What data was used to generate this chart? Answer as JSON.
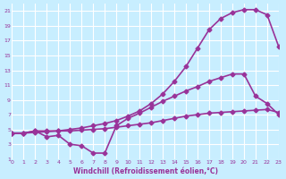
{
  "line1_x": [
    0,
    1,
    2,
    3,
    4,
    5,
    6,
    7,
    8,
    9,
    10,
    11,
    12,
    13,
    14,
    15,
    16,
    17,
    18,
    19,
    20,
    21,
    22,
    23
  ],
  "line1_y": [
    4.5,
    4.5,
    4.8,
    4.8,
    4.8,
    5.0,
    5.2,
    5.5,
    5.8,
    6.2,
    6.8,
    7.5,
    8.5,
    9.8,
    11.5,
    13.5,
    16.0,
    18.5,
    20.0,
    20.8,
    21.2,
    21.2,
    20.5,
    16.2
  ],
  "line2_x": [
    0,
    1,
    2,
    3,
    4,
    5,
    6,
    7,
    8,
    9,
    10,
    11,
    12,
    13,
    14,
    15,
    16,
    17,
    18,
    19,
    20,
    21,
    22,
    23
  ],
  "line2_y": [
    4.5,
    4.5,
    4.6,
    4.7,
    4.8,
    4.8,
    4.9,
    5.0,
    5.1,
    5.3,
    5.5,
    5.7,
    5.9,
    6.2,
    6.5,
    6.8,
    7.0,
    7.2,
    7.3,
    7.4,
    7.5,
    7.6,
    7.7,
    7.3
  ],
  "line3_x": [
    0,
    1,
    2,
    3,
    4,
    5,
    6,
    7,
    8,
    9,
    10,
    11,
    12,
    13,
    14,
    15,
    16,
    17,
    18,
    19,
    20,
    21,
    22,
    23
  ],
  "line3_y": [
    4.5,
    4.5,
    4.8,
    4.0,
    4.2,
    3.0,
    2.8,
    1.8,
    1.8,
    5.5,
    6.5,
    7.2,
    8.0,
    8.8,
    9.5,
    10.2,
    10.8,
    11.5,
    12.0,
    12.5,
    12.5,
    9.5,
    8.5,
    7.0
  ],
  "color": "#993399",
  "bg_color": "#c8eeff",
  "grid_color": "#ffffff",
  "xlabel": "Windchill (Refroidissement éolien,°C)",
  "ylabel": "",
  "xlim": [
    0,
    23
  ],
  "ylim": [
    1,
    22
  ],
  "xticks": [
    0,
    1,
    2,
    3,
    4,
    5,
    6,
    7,
    8,
    9,
    10,
    11,
    12,
    13,
    14,
    15,
    16,
    17,
    18,
    19,
    20,
    21,
    22,
    23
  ],
  "yticks": [
    1,
    3,
    5,
    7,
    9,
    11,
    13,
    15,
    17,
    19,
    21
  ],
  "marker": "D",
  "markersize": 2.5,
  "linewidth": 1.2
}
